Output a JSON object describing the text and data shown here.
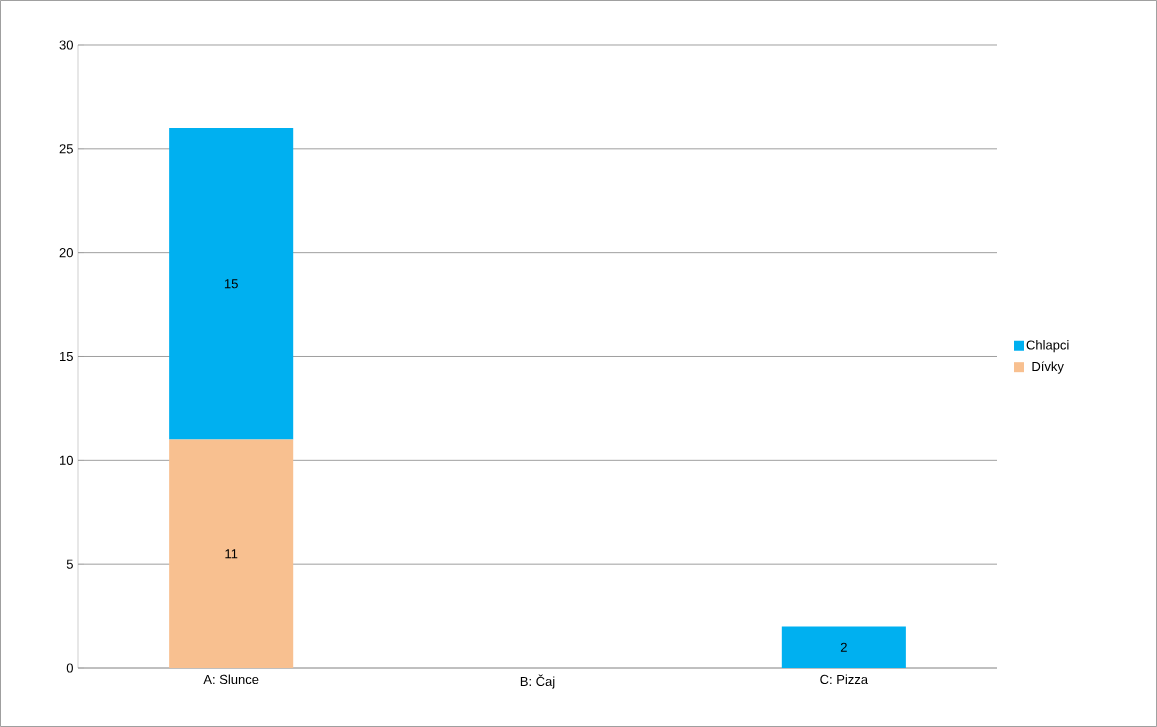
{
  "chart_data": {
    "type": "bar",
    "stacked": true,
    "categories": [
      "A: Slunce",
      "B: Čaj",
      "C: Pizza"
    ],
    "series": [
      {
        "name": "Dívky",
        "color": "#f8c090",
        "values": [
          11,
          0,
          0
        ],
        "value_labels": [
          "11",
          null,
          null
        ]
      },
      {
        "name": "Chlapci",
        "color": "#00b0f0",
        "values": [
          15,
          0,
          2
        ],
        "value_labels": [
          "15",
          null,
          "2"
        ]
      }
    ],
    "ylim": [
      0,
      30
    ],
    "yticks": [
      0,
      5,
      10,
      15,
      20,
      25,
      30
    ],
    "grid": "y",
    "legend": "right"
  }
}
